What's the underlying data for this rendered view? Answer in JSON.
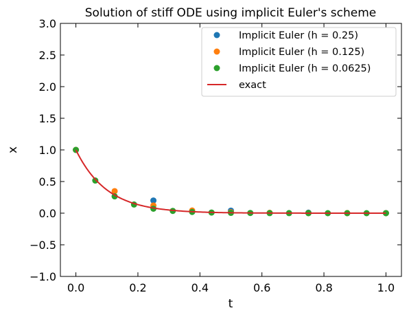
{
  "chart_data": {
    "type": "scatter",
    "title": "Solution of stiff ODE using implicit Euler's scheme",
    "xlabel": "t",
    "ylabel": "x",
    "xlim": [
      -0.05,
      1.05
    ],
    "ylim": [
      -1.0,
      3.0
    ],
    "xticks": [
      0.0,
      0.2,
      0.4,
      0.6,
      0.8,
      1.0
    ],
    "xtick_labels": [
      "0.0",
      "0.2",
      "0.4",
      "0.6",
      "0.8",
      "1.0"
    ],
    "yticks": [
      -1.0,
      -0.5,
      0.0,
      0.5,
      1.0,
      1.5,
      2.0,
      2.5,
      3.0
    ],
    "ytick_labels": [
      "−1.0",
      "−0.5",
      "0.0",
      "0.5",
      "1.0",
      "1.5",
      "2.0",
      "2.5",
      "3.0"
    ],
    "grid": false,
    "legend_position": "top-right",
    "series": [
      {
        "name": "Implicit Euler (h = 0.25)",
        "kind": "points",
        "color": "#1f77b4",
        "x": [
          0.0,
          0.25,
          0.5,
          0.75,
          1.0
        ],
        "y": [
          1.0,
          0.2,
          0.04,
          0.008,
          0.0016
        ]
      },
      {
        "name": "Implicit Euler (h = 0.125)",
        "kind": "points",
        "color": "#ff7f0e",
        "x": [
          0.0,
          0.125,
          0.25,
          0.375,
          0.5,
          0.625,
          0.75,
          0.875,
          1.0
        ],
        "y": [
          1.0,
          0.348,
          0.121,
          0.042,
          0.015,
          0.005,
          0.002,
          0.001,
          0.0002
        ]
      },
      {
        "name": "Implicit Euler (h = 0.0625)",
        "kind": "points",
        "color": "#2ca02c",
        "x": [
          0.0,
          0.0625,
          0.125,
          0.1875,
          0.25,
          0.3125,
          0.375,
          0.4375,
          0.5,
          0.5625,
          0.625,
          0.6875,
          0.75,
          0.8125,
          0.875,
          0.9375,
          1.0
        ],
        "y": [
          1.0,
          0.516,
          0.266,
          0.137,
          0.071,
          0.036,
          0.019,
          0.01,
          0.005,
          0.003,
          0.001,
          0.001,
          0.0,
          0.0,
          0.0,
          0.0,
          0.0
        ]
      },
      {
        "name": "exact",
        "kind": "line",
        "color": "#d62728",
        "function": "exp(-10t)",
        "x_range": [
          0.0,
          1.0
        ]
      }
    ]
  }
}
